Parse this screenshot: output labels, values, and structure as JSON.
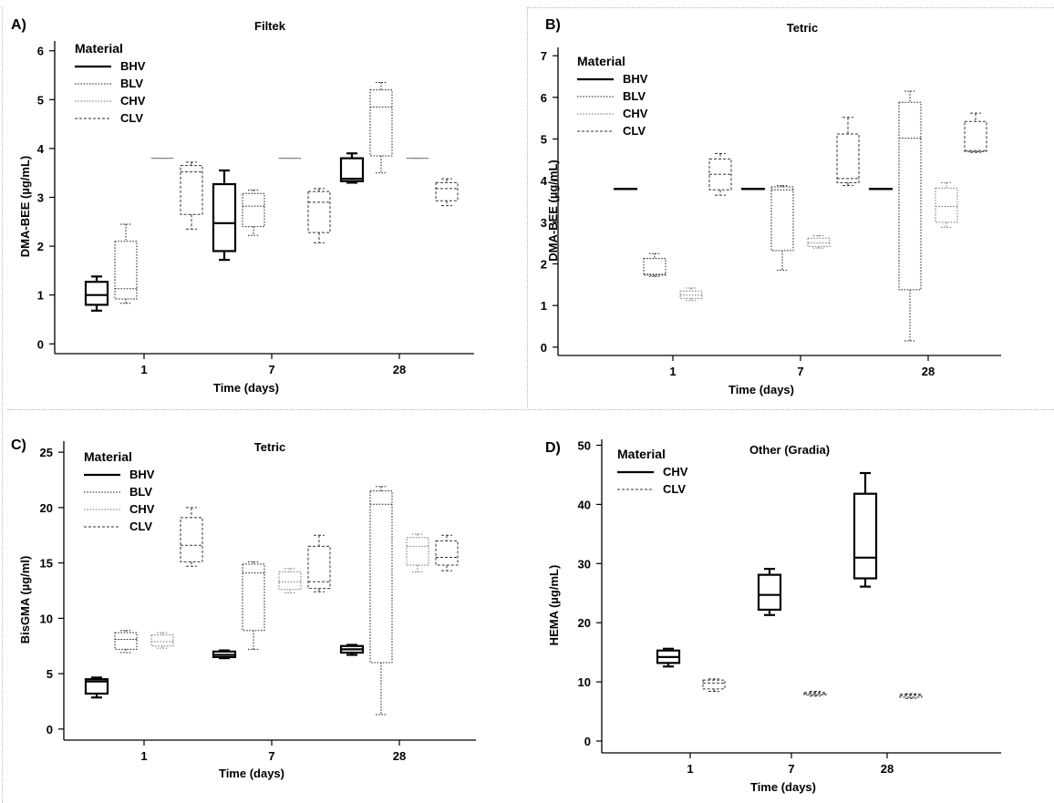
{
  "chart_data": [
    {
      "panel": "A)",
      "type": "box",
      "title": "Filtek",
      "xlabel": "Time (days)",
      "ylabel": "DMA-BEE (µg/mL)",
      "categories": [
        "1",
        "7",
        "28"
      ],
      "ylim": [
        -0.2,
        6.2
      ],
      "yticks": [
        0,
        1,
        2,
        3,
        4,
        5,
        6
      ],
      "legend": {
        "title": "Material",
        "position": "top-left"
      },
      "series": [
        {
          "name": "BHV",
          "color": "#000000",
          "line": "solid-bold",
          "boxes": [
            {
              "category": "1",
              "min": 0.68,
              "q1": 0.8,
              "median": 1.0,
              "q3": 1.27,
              "max": 1.38
            },
            {
              "category": "7",
              "min": 1.72,
              "q1": 1.9,
              "median": 2.47,
              "q3": 3.27,
              "max": 3.55
            },
            {
              "category": "28",
              "min": 3.3,
              "q1": 3.33,
              "median": 3.38,
              "q3": 3.8,
              "max": 3.9
            }
          ]
        },
        {
          "name": "BLV",
          "color": "#222222",
          "line": "dotted",
          "boxes": [
            {
              "category": "1",
              "min": 0.83,
              "q1": 0.92,
              "median": 1.13,
              "q3": 2.1,
              "max": 2.45
            },
            {
              "category": "7",
              "min": 2.22,
              "q1": 2.4,
              "median": 2.82,
              "q3": 3.08,
              "max": 3.15
            },
            {
              "category": "28",
              "min": 3.5,
              "q1": 3.85,
              "median": 4.85,
              "q3": 5.2,
              "max": 5.35
            }
          ]
        },
        {
          "name": "CHV",
          "color": "#777777",
          "line": "dotted",
          "boxes": [
            {
              "category": "1",
              "min": 3.8,
              "q1": 3.8,
              "median": 3.8,
              "q3": 3.8,
              "max": 3.8
            },
            {
              "category": "7",
              "min": 3.8,
              "q1": 3.8,
              "median": 3.8,
              "q3": 3.8,
              "max": 3.8
            },
            {
              "category": "28",
              "min": 3.8,
              "q1": 3.8,
              "median": 3.8,
              "q3": 3.8,
              "max": 3.8
            }
          ]
        },
        {
          "name": "CLV",
          "color": "#333333",
          "line": "dashed",
          "boxes": [
            {
              "category": "1",
              "min": 2.35,
              "q1": 2.65,
              "median": 3.52,
              "q3": 3.65,
              "max": 3.72
            },
            {
              "category": "7",
              "min": 2.07,
              "q1": 2.28,
              "median": 2.9,
              "q3": 3.12,
              "max": 3.18
            },
            {
              "category": "28",
              "min": 2.83,
              "q1": 2.93,
              "median": 3.18,
              "q3": 3.3,
              "max": 3.38
            }
          ]
        }
      ]
    },
    {
      "panel": "B)",
      "type": "box",
      "title": "Tetric",
      "xlabel": "Time (days)",
      "ylabel": "DMA-BEE (µg/mL)",
      "categories": [
        "1",
        "7",
        "28"
      ],
      "ylim": [
        -0.2,
        7.2
      ],
      "yticks": [
        0,
        1,
        2,
        3,
        4,
        5,
        6,
        7
      ],
      "legend": {
        "title": "Material",
        "position": "top-left"
      },
      "series": [
        {
          "name": "BHV",
          "color": "#000000",
          "line": "solid-bold",
          "boxes": [
            {
              "category": "1",
              "min": 3.8,
              "q1": 3.8,
              "median": 3.8,
              "q3": 3.8,
              "max": 3.8
            },
            {
              "category": "7",
              "min": 3.8,
              "q1": 3.8,
              "median": 3.8,
              "q3": 3.8,
              "max": 3.8
            },
            {
              "category": "28",
              "min": 3.8,
              "q1": 3.8,
              "median": 3.8,
              "q3": 3.8,
              "max": 3.8
            }
          ]
        },
        {
          "name": "BLV",
          "color": "#222222",
          "line": "dotted",
          "boxes": [
            {
              "category": "1",
              "min": 1.7,
              "q1": 1.73,
              "median": 1.75,
              "q3": 2.13,
              "max": 2.25
            },
            {
              "category": "7",
              "min": 1.85,
              "q1": 2.32,
              "median": 3.78,
              "q3": 3.85,
              "max": 3.88
            },
            {
              "category": "28",
              "min": 0.15,
              "q1": 1.38,
              "median": 5.02,
              "q3": 5.88,
              "max": 6.15
            }
          ]
        },
        {
          "name": "CHV",
          "color": "#777777",
          "line": "dotted",
          "boxes": [
            {
              "category": "1",
              "min": 1.12,
              "q1": 1.17,
              "median": 1.25,
              "q3": 1.35,
              "max": 1.42
            },
            {
              "category": "7",
              "min": 2.38,
              "q1": 2.42,
              "median": 2.5,
              "q3": 2.62,
              "max": 2.68
            },
            {
              "category": "28",
              "min": 2.88,
              "q1": 3.0,
              "median": 3.38,
              "q3": 3.82,
              "max": 3.95
            }
          ]
        },
        {
          "name": "CLV",
          "color": "#333333",
          "line": "dashed",
          "boxes": [
            {
              "category": "1",
              "min": 3.65,
              "q1": 3.78,
              "median": 4.15,
              "q3": 4.52,
              "max": 4.65
            },
            {
              "category": "7",
              "min": 3.88,
              "q1": 3.95,
              "median": 4.05,
              "q3": 5.12,
              "max": 5.52
            },
            {
              "category": "28",
              "min": 4.68,
              "q1": 4.7,
              "median": 4.72,
              "q3": 5.42,
              "max": 5.62
            }
          ]
        }
      ]
    },
    {
      "panel": "C)",
      "type": "box",
      "title": "Tetric",
      "xlabel": "Time (days)",
      "ylabel": "BisGMA (µg/ml)",
      "categories": [
        "1",
        "7",
        "28"
      ],
      "ylim": [
        -1,
        26
      ],
      "yticks": [
        0,
        5,
        10,
        15,
        20,
        25
      ],
      "legend": {
        "title": "Material",
        "position": "top-left"
      },
      "series": [
        {
          "name": "BHV",
          "color": "#000000",
          "line": "solid-bold",
          "boxes": [
            {
              "category": "1",
              "min": 2.85,
              "q1": 3.2,
              "median": 4.3,
              "q3": 4.5,
              "max": 4.65
            },
            {
              "category": "7",
              "min": 6.4,
              "q1": 6.5,
              "median": 6.7,
              "q3": 7.0,
              "max": 7.1
            },
            {
              "category": "28",
              "min": 6.7,
              "q1": 6.9,
              "median": 7.2,
              "q3": 7.5,
              "max": 7.6
            }
          ]
        },
        {
          "name": "BLV",
          "color": "#222222",
          "line": "dotted",
          "boxes": [
            {
              "category": "1",
              "min": 6.9,
              "q1": 7.2,
              "median": 8.1,
              "q3": 8.7,
              "max": 8.9
            },
            {
              "category": "7",
              "min": 7.2,
              "q1": 8.9,
              "median": 14.1,
              "q3": 14.9,
              "max": 15.1
            },
            {
              "category": "28",
              "min": 1.3,
              "q1": 6.0,
              "median": 20.3,
              "q3": 21.5,
              "max": 21.9
            }
          ]
        },
        {
          "name": "CHV",
          "color": "#777777",
          "line": "dotted",
          "boxes": [
            {
              "category": "1",
              "min": 7.3,
              "q1": 7.5,
              "median": 7.9,
              "q3": 8.5,
              "max": 8.7
            },
            {
              "category": "7",
              "min": 12.3,
              "q1": 12.6,
              "median": 13.3,
              "q3": 14.2,
              "max": 14.5
            },
            {
              "category": "28",
              "min": 14.2,
              "q1": 14.8,
              "median": 16.5,
              "q3": 17.3,
              "max": 17.6
            }
          ]
        },
        {
          "name": "CLV",
          "color": "#333333",
          "line": "dashed",
          "boxes": [
            {
              "category": "1",
              "min": 14.7,
              "q1": 15.1,
              "median": 16.6,
              "q3": 19.1,
              "max": 20.0
            },
            {
              "category": "7",
              "min": 12.4,
              "q1": 12.7,
              "median": 13.3,
              "q3": 16.5,
              "max": 17.5
            },
            {
              "category": "28",
              "min": 14.3,
              "q1": 14.8,
              "median": 15.5,
              "q3": 17.0,
              "max": 17.5
            }
          ]
        }
      ]
    },
    {
      "panel": "D)",
      "type": "box",
      "title": "Other (Gradia)",
      "xlabel": "Time (days)",
      "ylabel": "HEMA (µg/mL)",
      "categories": [
        "1",
        "7",
        "28"
      ],
      "ylim": [
        -2,
        51
      ],
      "yticks": [
        0,
        10,
        20,
        30,
        40,
        50
      ],
      "legend": {
        "title": "Material",
        "position": "top-left"
      },
      "series": [
        {
          "name": "CHV",
          "color": "#000000",
          "line": "solid-bold",
          "boxes": [
            {
              "category": "1",
              "min": 12.6,
              "q1": 13.2,
              "median": 14.2,
              "q3": 15.3,
              "max": 15.6
            },
            {
              "category": "7",
              "min": 21.3,
              "q1": 22.2,
              "median": 24.7,
              "q3": 28.1,
              "max": 29.1
            },
            {
              "category": "28",
              "min": 26.1,
              "q1": 27.5,
              "median": 31.0,
              "q3": 41.8,
              "max": 45.3
            }
          ]
        },
        {
          "name": "CLV",
          "color": "#333333",
          "line": "dashed",
          "boxes": [
            {
              "category": "1",
              "min": 8.4,
              "q1": 8.8,
              "median": 9.8,
              "q3": 10.3,
              "max": 10.5
            },
            {
              "category": "7",
              "min": 7.6,
              "q1": 7.8,
              "median": 8.0,
              "q3": 8.2,
              "max": 8.4
            },
            {
              "category": "28",
              "min": 7.2,
              "q1": 7.4,
              "median": 7.7,
              "q3": 7.9,
              "max": 8.0
            }
          ]
        }
      ]
    }
  ]
}
